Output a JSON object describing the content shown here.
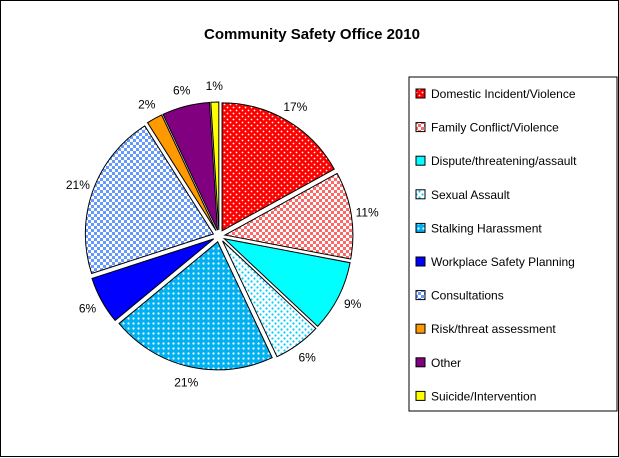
{
  "chart_data": {
    "type": "pie",
    "title": "Community Safety Office 2010",
    "legend_position": "right",
    "slices": [
      {
        "label": "Domestic Incident/Violence",
        "value": 17,
        "display": "17%",
        "color": "#ff0000",
        "pattern": "dots"
      },
      {
        "label": "Family Conflict/Violence",
        "value": 11,
        "display": "11%",
        "color": "#ff9999",
        "pattern": "check"
      },
      {
        "label": "Dispute/threatening/assault",
        "value": 9,
        "display": "9%",
        "color": "#00ffff",
        "pattern": "solid"
      },
      {
        "label": "Sexual Assault",
        "value": 6,
        "display": "6%",
        "color": "#33ccff",
        "pattern": "sparse-dots"
      },
      {
        "label": "Stalking Harassment",
        "value": 21,
        "display": "21%",
        "color": "#00aaee",
        "pattern": "grid-dots"
      },
      {
        "label": "Workplace Safety Planning",
        "value": 6,
        "display": "6%",
        "color": "#0000ff",
        "pattern": "solid"
      },
      {
        "label": "Consultations",
        "value": 21,
        "display": "21%",
        "color": "#99ccff",
        "pattern": "check"
      },
      {
        "label": "Risk/threat assessment",
        "value": 2,
        "display": "2%",
        "color": "#ff9900",
        "pattern": "solid"
      },
      {
        "label": "Other",
        "value": 6,
        "display": "6%",
        "color": "#800080",
        "pattern": "solid"
      },
      {
        "label": "Suicide/Intervention",
        "value": 1,
        "display": "1%",
        "color": "#ffff00",
        "pattern": "solid"
      }
    ]
  }
}
